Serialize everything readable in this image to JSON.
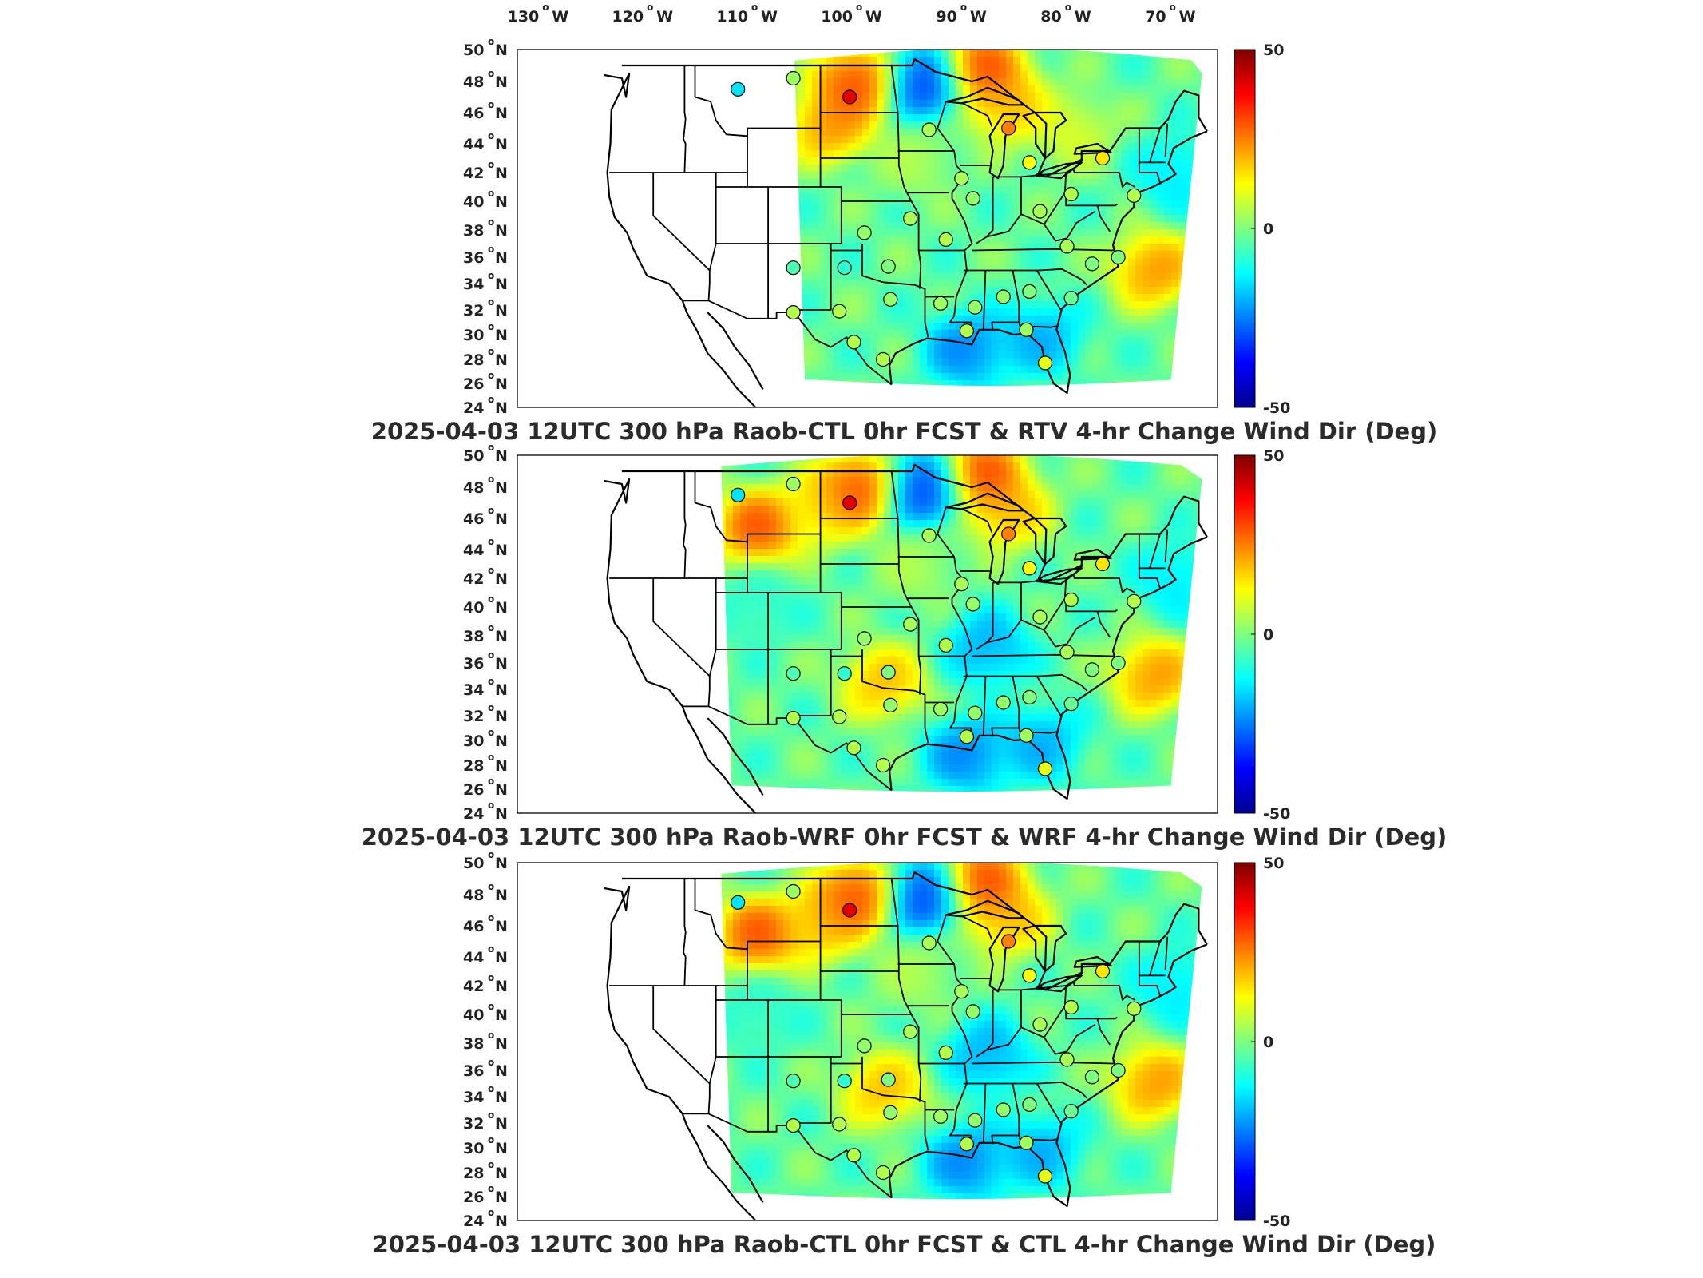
{
  "colormap": [
    "#00008f",
    "#0000ff",
    "#007fff",
    "#00ffff",
    "#7fff7f",
    "#ffff00",
    "#ff7f00",
    "#ff0000",
    "#7f0000"
  ],
  "lon_ticks": [
    "130",
    "120",
    "110",
    "100",
    "90",
    "80",
    "70"
  ],
  "lon_suffix": "W",
  "lat_ticks": [
    "50",
    "48",
    "46",
    "44",
    "42",
    "40",
    "38",
    "36",
    "34",
    "32",
    "30",
    "28",
    "26",
    "24"
  ],
  "lat_suffix": "N",
  "degree_mark": "o",
  "chart_data": [
    {
      "type": "heatmap",
      "title": "2025-04-03 12UTC 300 hPa Raob-CTL 0hr FCST & RTV 4-hr Change Wind Dir (Deg)",
      "xlim": [
        -133,
        -66
      ],
      "ylim": [
        24,
        50
      ],
      "colorbar": {
        "min": -50,
        "max": 50,
        "ticks": [
          "50",
          "0",
          "-50"
        ]
      },
      "domain_west_lon": -106.5,
      "field_features": [
        {
          "lon": -83,
          "lat": 29,
          "value": -25
        },
        {
          "lon": -72,
          "lat": 34,
          "value": 30
        },
        {
          "lon": -95,
          "lat": 42,
          "value": 6
        },
        {
          "lon": -100.5,
          "lat": 47.5,
          "value": 40
        },
        {
          "lon": -94,
          "lat": 47.5,
          "value": -40
        },
        {
          "lon": -88.5,
          "lat": 48.5,
          "value": 40
        },
        {
          "lon": -86,
          "lat": 46,
          "value": 25
        },
        {
          "lon": -103,
          "lat": 44.5,
          "value": 30
        },
        {
          "lon": -80,
          "lat": 44,
          "value": 12
        },
        {
          "lon": -90,
          "lat": 28.2,
          "value": -30
        },
        {
          "lon": -70,
          "lat": 41,
          "value": -18
        }
      ],
      "raob_points": [
        {
          "lon": -111.9,
          "lat": 47.5,
          "value": -15
        },
        {
          "lon": -106.6,
          "lat": 48.2,
          "value": 3
        },
        {
          "lon": -101.2,
          "lat": 47.0,
          "value": 40
        },
        {
          "lon": -93.6,
          "lat": 44.9,
          "value": 4
        },
        {
          "lon": -90.5,
          "lat": 41.6,
          "value": 4
        },
        {
          "lon": -89.4,
          "lat": 40.2,
          "value": 2
        },
        {
          "lon": -86.0,
          "lat": 45.0,
          "value": 25
        },
        {
          "lon": -84.0,
          "lat": 42.7,
          "value": 12
        },
        {
          "lon": -80.0,
          "lat": 40.5,
          "value": 5
        },
        {
          "lon": -83.0,
          "lat": 39.3,
          "value": 4
        },
        {
          "lon": -77.0,
          "lat": 43.0,
          "value": 15
        },
        {
          "lon": -99.8,
          "lat": 37.8,
          "value": 2
        },
        {
          "lon": -95.4,
          "lat": 38.8,
          "value": 4
        },
        {
          "lon": -92.0,
          "lat": 37.3,
          "value": 5
        },
        {
          "lon": -106.6,
          "lat": 35.2,
          "value": -5
        },
        {
          "lon": -101.7,
          "lat": 35.2,
          "value": -8
        },
        {
          "lon": -97.5,
          "lat": 35.3,
          "value": 0
        },
        {
          "lon": -106.6,
          "lat": 31.8,
          "value": 5
        },
        {
          "lon": -102.2,
          "lat": 31.9,
          "value": 5
        },
        {
          "lon": -97.3,
          "lat": 32.8,
          "value": 2
        },
        {
          "lon": -92.5,
          "lat": 32.5,
          "value": 3
        },
        {
          "lon": -89.2,
          "lat": 32.2,
          "value": 2
        },
        {
          "lon": -86.5,
          "lat": 33.0,
          "value": 2
        },
        {
          "lon": -84.0,
          "lat": 33.4,
          "value": 0
        },
        {
          "lon": -80.0,
          "lat": 32.9,
          "value": -2
        },
        {
          "lon": -78.0,
          "lat": 35.5,
          "value": 0
        },
        {
          "lon": -80.4,
          "lat": 36.8,
          "value": 4
        },
        {
          "lon": -75.5,
          "lat": 36.0,
          "value": 0
        },
        {
          "lon": -74.0,
          "lat": 40.4,
          "value": 5
        },
        {
          "lon": -98.0,
          "lat": 28.0,
          "value": 5
        },
        {
          "lon": -100.8,
          "lat": 29.4,
          "value": 5
        },
        {
          "lon": -90.0,
          "lat": 30.3,
          "value": 5
        },
        {
          "lon": -84.3,
          "lat": 30.4,
          "value": 3
        },
        {
          "lon": -82.5,
          "lat": 27.7,
          "value": 10
        }
      ]
    },
    {
      "type": "heatmap",
      "title": "2025-04-03 12UTC 300 hPa Raob-WRF 0hr FCST & WRF 4-hr Change Wind Dir (Deg)",
      "xlim": [
        -133,
        -66
      ],
      "ylim": [
        24,
        50
      ],
      "colorbar": {
        "min": -50,
        "max": 50,
        "ticks": [
          "50",
          "0",
          "-50"
        ]
      },
      "domain_west_lon": -113.5,
      "field_features": [
        {
          "lon": -83,
          "lat": 29,
          "value": -25
        },
        {
          "lon": -72,
          "lat": 34,
          "value": 30
        },
        {
          "lon": -95,
          "lat": 42,
          "value": 6
        },
        {
          "lon": -100.5,
          "lat": 47.5,
          "value": 40
        },
        {
          "lon": -94,
          "lat": 47.5,
          "value": -40
        },
        {
          "lon": -88.5,
          "lat": 48.5,
          "value": 40
        },
        {
          "lon": -86,
          "lat": 46,
          "value": 25
        },
        {
          "lon": -110,
          "lat": 44.8,
          "value": 38
        },
        {
          "lon": -104,
          "lat": 46,
          "value": 20
        },
        {
          "lon": -110,
          "lat": 39,
          "value": -10
        },
        {
          "lon": -98,
          "lat": 33.5,
          "value": 25
        },
        {
          "lon": -88,
          "lat": 36,
          "value": -25
        },
        {
          "lon": -90,
          "lat": 28.2,
          "value": -30
        },
        {
          "lon": -70,
          "lat": 41,
          "value": -18
        }
      ],
      "raob_points": [
        {
          "lon": -111.9,
          "lat": 47.5,
          "value": -15
        },
        {
          "lon": -106.6,
          "lat": 48.2,
          "value": 3
        },
        {
          "lon": -101.2,
          "lat": 47.0,
          "value": 40
        },
        {
          "lon": -93.6,
          "lat": 44.9,
          "value": 4
        },
        {
          "lon": -90.5,
          "lat": 41.6,
          "value": 4
        },
        {
          "lon": -89.4,
          "lat": 40.2,
          "value": 2
        },
        {
          "lon": -86.0,
          "lat": 45.0,
          "value": 25
        },
        {
          "lon": -84.0,
          "lat": 42.7,
          "value": 12
        },
        {
          "lon": -80.0,
          "lat": 40.5,
          "value": 5
        },
        {
          "lon": -83.0,
          "lat": 39.3,
          "value": 4
        },
        {
          "lon": -77.0,
          "lat": 43.0,
          "value": 15
        },
        {
          "lon": -99.8,
          "lat": 37.8,
          "value": 2
        },
        {
          "lon": -95.4,
          "lat": 38.8,
          "value": 4
        },
        {
          "lon": -92.0,
          "lat": 37.3,
          "value": 5
        },
        {
          "lon": -106.6,
          "lat": 35.2,
          "value": -5
        },
        {
          "lon": -101.7,
          "lat": 35.2,
          "value": -8
        },
        {
          "lon": -97.5,
          "lat": 35.3,
          "value": 0
        },
        {
          "lon": -106.6,
          "lat": 31.8,
          "value": 5
        },
        {
          "lon": -102.2,
          "lat": 31.9,
          "value": 5
        },
        {
          "lon": -97.3,
          "lat": 32.8,
          "value": 2
        },
        {
          "lon": -92.5,
          "lat": 32.5,
          "value": 3
        },
        {
          "lon": -89.2,
          "lat": 32.2,
          "value": 2
        },
        {
          "lon": -86.5,
          "lat": 33.0,
          "value": 2
        },
        {
          "lon": -84.0,
          "lat": 33.4,
          "value": 0
        },
        {
          "lon": -80.0,
          "lat": 32.9,
          "value": -2
        },
        {
          "lon": -78.0,
          "lat": 35.5,
          "value": 0
        },
        {
          "lon": -80.4,
          "lat": 36.8,
          "value": 4
        },
        {
          "lon": -75.5,
          "lat": 36.0,
          "value": 0
        },
        {
          "lon": -74.0,
          "lat": 40.4,
          "value": 5
        },
        {
          "lon": -98.0,
          "lat": 28.0,
          "value": 5
        },
        {
          "lon": -100.8,
          "lat": 29.4,
          "value": 5
        },
        {
          "lon": -90.0,
          "lat": 30.3,
          "value": 5
        },
        {
          "lon": -84.3,
          "lat": 30.4,
          "value": 3
        },
        {
          "lon": -82.5,
          "lat": 27.7,
          "value": 10
        }
      ]
    },
    {
      "type": "heatmap",
      "title": "2025-04-03 12UTC 300 hPa Raob-CTL 0hr FCST & CTL 4-hr Change Wind Dir (Deg)",
      "xlim": [
        -133,
        -66
      ],
      "ylim": [
        24,
        50
      ],
      "colorbar": {
        "min": -50,
        "max": 50,
        "ticks": [
          "50",
          "0",
          "-50"
        ]
      },
      "domain_west_lon": -113.5,
      "field_features": [
        {
          "lon": -83,
          "lat": 29,
          "value": -25
        },
        {
          "lon": -72,
          "lat": 34,
          "value": 30
        },
        {
          "lon": -95,
          "lat": 42,
          "value": 6
        },
        {
          "lon": -100.5,
          "lat": 47.5,
          "value": 40
        },
        {
          "lon": -94,
          "lat": 47.5,
          "value": -40
        },
        {
          "lon": -88.5,
          "lat": 48.5,
          "value": 40
        },
        {
          "lon": -86,
          "lat": 46,
          "value": 25
        },
        {
          "lon": -110,
          "lat": 44.8,
          "value": 38
        },
        {
          "lon": -104,
          "lat": 45.5,
          "value": 25
        },
        {
          "lon": -110,
          "lat": 39,
          "value": -10
        },
        {
          "lon": -98,
          "lat": 33.5,
          "value": 25
        },
        {
          "lon": -88,
          "lat": 36,
          "value": -25
        },
        {
          "lon": -90,
          "lat": 28.2,
          "value": -30
        },
        {
          "lon": -70,
          "lat": 41,
          "value": -18
        }
      ],
      "raob_points": [
        {
          "lon": -111.9,
          "lat": 47.5,
          "value": -15
        },
        {
          "lon": -106.6,
          "lat": 48.2,
          "value": 3
        },
        {
          "lon": -101.2,
          "lat": 47.0,
          "value": 40
        },
        {
          "lon": -93.6,
          "lat": 44.9,
          "value": 4
        },
        {
          "lon": -90.5,
          "lat": 41.6,
          "value": 4
        },
        {
          "lon": -89.4,
          "lat": 40.2,
          "value": 2
        },
        {
          "lon": -86.0,
          "lat": 45.0,
          "value": 25
        },
        {
          "lon": -84.0,
          "lat": 42.7,
          "value": 12
        },
        {
          "lon": -80.0,
          "lat": 40.5,
          "value": 5
        },
        {
          "lon": -83.0,
          "lat": 39.3,
          "value": 4
        },
        {
          "lon": -77.0,
          "lat": 43.0,
          "value": 15
        },
        {
          "lon": -99.8,
          "lat": 37.8,
          "value": 2
        },
        {
          "lon": -95.4,
          "lat": 38.8,
          "value": 4
        },
        {
          "lon": -92.0,
          "lat": 37.3,
          "value": 5
        },
        {
          "lon": -106.6,
          "lat": 35.2,
          "value": -5
        },
        {
          "lon": -101.7,
          "lat": 35.2,
          "value": -8
        },
        {
          "lon": -97.5,
          "lat": 35.3,
          "value": 0
        },
        {
          "lon": -106.6,
          "lat": 31.8,
          "value": 5
        },
        {
          "lon": -102.2,
          "lat": 31.9,
          "value": 5
        },
        {
          "lon": -97.3,
          "lat": 32.8,
          "value": 2
        },
        {
          "lon": -92.5,
          "lat": 32.5,
          "value": 3
        },
        {
          "lon": -89.2,
          "lat": 32.2,
          "value": 2
        },
        {
          "lon": -86.5,
          "lat": 33.0,
          "value": 2
        },
        {
          "lon": -84.0,
          "lat": 33.4,
          "value": 0
        },
        {
          "lon": -80.0,
          "lat": 32.9,
          "value": -2
        },
        {
          "lon": -78.0,
          "lat": 35.5,
          "value": 0
        },
        {
          "lon": -80.4,
          "lat": 36.8,
          "value": 4
        },
        {
          "lon": -75.5,
          "lat": 36.0,
          "value": 0
        },
        {
          "lon": -74.0,
          "lat": 40.4,
          "value": 5
        },
        {
          "lon": -98.0,
          "lat": 28.0,
          "value": 5
        },
        {
          "lon": -100.8,
          "lat": 29.4,
          "value": 5
        },
        {
          "lon": -90.0,
          "lat": 30.3,
          "value": 5
        },
        {
          "lon": -84.3,
          "lat": 30.4,
          "value": 3
        },
        {
          "lon": -82.5,
          "lat": 27.7,
          "value": 10
        }
      ]
    }
  ]
}
